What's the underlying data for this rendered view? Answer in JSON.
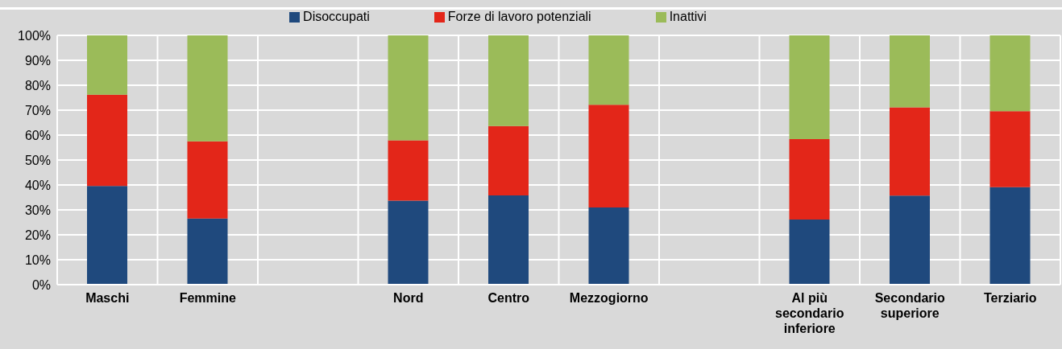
{
  "chart_data": {
    "type": "bar",
    "stacked": true,
    "categories": [
      "Maschi",
      "Femmine",
      null,
      "Nord",
      "Centro",
      "Mezzogiorno",
      null,
      "Al più secondario inferiore",
      "Secondario superiore",
      "Terziario"
    ],
    "series": [
      {
        "name": "Disoccupati",
        "color": "#1f497d",
        "values": [
          39.6,
          26.5,
          null,
          33.7,
          35.8,
          31.0,
          null,
          26.1,
          35.7,
          39.1
        ]
      },
      {
        "name": "Forze di lavoro potenziali",
        "color": "#e32619",
        "values": [
          36.6,
          31.0,
          null,
          24.2,
          27.8,
          41.2,
          null,
          32.3,
          35.4,
          30.5
        ]
      },
      {
        "name": "Inattivi",
        "color": "#9bbb59",
        "values": [
          23.8,
          42.5,
          null,
          42.1,
          36.4,
          27.8,
          null,
          41.6,
          28.9,
          30.4
        ]
      }
    ],
    "ylim": [
      0,
      100
    ],
    "yticks": [
      {
        "value": 0,
        "label": "0%"
      },
      {
        "value": 10,
        "label": "10%"
      },
      {
        "value": 20,
        "label": "20%"
      },
      {
        "value": 30,
        "label": "30%"
      },
      {
        "value": 40,
        "label": "40%"
      },
      {
        "value": 50,
        "label": "50%"
      },
      {
        "value": 60,
        "label": "60%"
      },
      {
        "value": 70,
        "label": "70%"
      },
      {
        "value": 80,
        "label": "80%"
      },
      {
        "value": 90,
        "label": "90%"
      },
      {
        "value": 100,
        "label": "100%"
      }
    ],
    "grid": true,
    "legend": "top"
  }
}
